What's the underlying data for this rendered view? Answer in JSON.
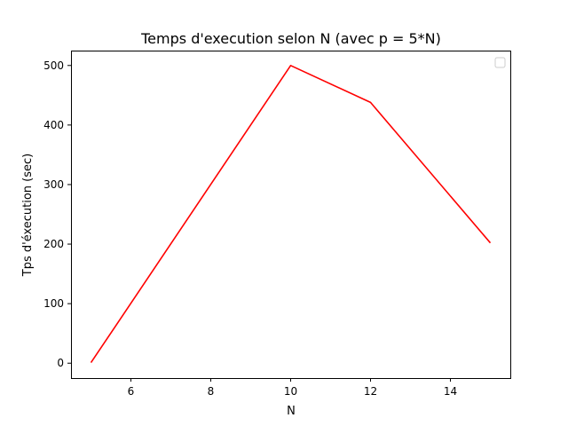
{
  "chart_data": {
    "type": "line",
    "title": "Temps d'execution selon N (avec p = 5*N)",
    "xlabel": "N",
    "ylabel": "Tps d'éxecution (sec)",
    "xlim": [
      4.5,
      15.5
    ],
    "ylim": [
      -25,
      525
    ],
    "xticks": [
      6,
      8,
      10,
      12,
      14
    ],
    "yticks": [
      0,
      100,
      200,
      300,
      400,
      500
    ],
    "grid": false,
    "legend": "top-right, empty",
    "series": [
      {
        "color": "#ff0000",
        "x": [
          5,
          10,
          12,
          15
        ],
        "y": [
          1,
          500,
          438,
          202
        ]
      }
    ]
  }
}
